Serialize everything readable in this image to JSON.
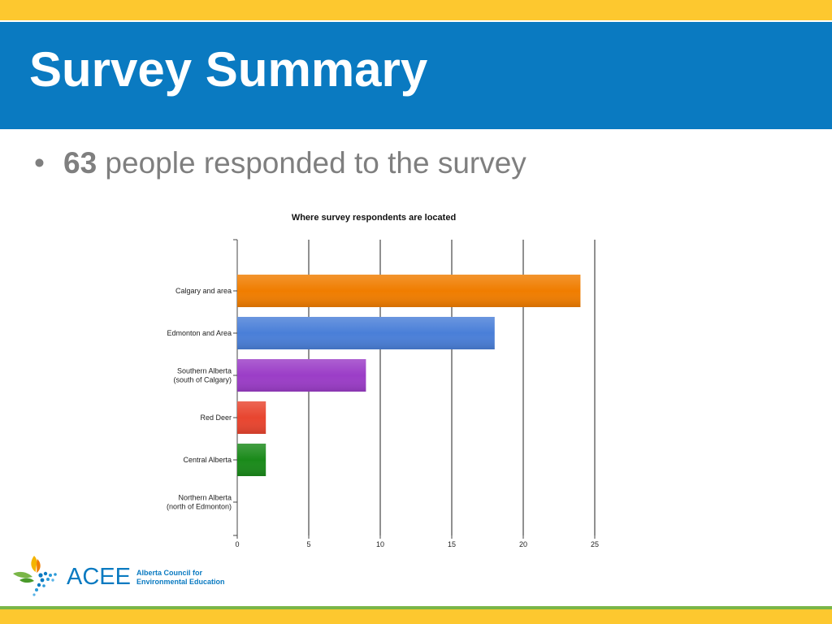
{
  "slide": {
    "title": "Survey Summary",
    "bullet": {
      "count": "63",
      "text": " people responded to the survey"
    }
  },
  "colors": {
    "header_blue": "#0a7ac1",
    "accent_yellow": "#fdc82f",
    "accent_green": "#7ab648"
  },
  "chart_data": {
    "type": "bar",
    "orientation": "horizontal",
    "title": "Where survey respondents are located",
    "xlabel": "",
    "ylabel": "",
    "categories": [
      [
        "Calgary and area"
      ],
      [
        "Edmonton and Area"
      ],
      [
        "Southern Alberta",
        "(south of Calgary)"
      ],
      [
        "Red Deer"
      ],
      [
        "Central Alberta"
      ],
      [
        "Northern Alberta",
        "(north of Edmonton)"
      ]
    ],
    "values": [
      24,
      18,
      9,
      2,
      2,
      0
    ],
    "bar_colors": [
      "#f07d00",
      "#4a7fd8",
      "#9b3dc7",
      "#e8452f",
      "#1a8a1a",
      "#888888"
    ],
    "xlim": [
      0,
      25
    ],
    "xticks": [
      0,
      5,
      10,
      15,
      20,
      25
    ],
    "grid": true
  },
  "logo": {
    "icon": "acee-leaf-water-icon",
    "acronym": "ACEE",
    "name_line1": "Alberta Council for",
    "name_line2": "Environmental Education"
  }
}
